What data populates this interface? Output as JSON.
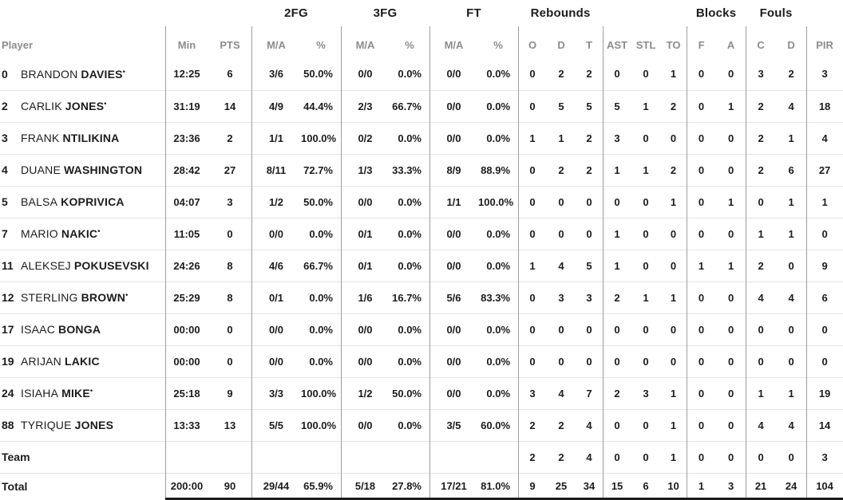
{
  "colors": {
    "text": "#1c1c1c",
    "muted_header": "#8c8c8c",
    "column_divider": "#9e9e9e",
    "row_line": "#e4e4e4",
    "total_bar": "#1c1c1c"
  },
  "header": {
    "player_label": "Player",
    "groups": {
      "fg2": "2FG",
      "fg3": "3FG",
      "ft": "FT",
      "rebounds": "Rebounds",
      "blocks": "Blocks",
      "fouls": "Fouls"
    },
    "cols": {
      "min": "Min",
      "pts": "PTS",
      "ma": "M/A",
      "pct": "%",
      "reb_o": "O",
      "reb_d": "D",
      "reb_t": "T",
      "ast": "AST",
      "stl": "STL",
      "to": "TO",
      "blk_f": "F",
      "blk_a": "A",
      "foul_c": "C",
      "foul_d": "D",
      "pir": "PIR"
    }
  },
  "starter_marker": "•",
  "players": [
    {
      "number": "0",
      "first": "BRANDON",
      "last": "DAVIES",
      "starter": true,
      "min": "12:25",
      "pts": "6",
      "fg2_ma": "3/6",
      "fg2_pct": "50.0%",
      "fg3_ma": "0/0",
      "fg3_pct": "0.0%",
      "ft_ma": "0/0",
      "ft_pct": "0.0%",
      "reb_o": "0",
      "reb_d": "2",
      "reb_t": "2",
      "ast": "0",
      "stl": "0",
      "to": "1",
      "blk_f": "0",
      "blk_a": "0",
      "foul_c": "3",
      "foul_d": "2",
      "pir": "3"
    },
    {
      "number": "2",
      "first": "CARLIK",
      "last": "JONES",
      "starter": true,
      "min": "31:19",
      "pts": "14",
      "fg2_ma": "4/9",
      "fg2_pct": "44.4%",
      "fg3_ma": "2/3",
      "fg3_pct": "66.7%",
      "ft_ma": "0/0",
      "ft_pct": "0.0%",
      "reb_o": "0",
      "reb_d": "5",
      "reb_t": "5",
      "ast": "5",
      "stl": "1",
      "to": "2",
      "blk_f": "0",
      "blk_a": "1",
      "foul_c": "2",
      "foul_d": "4",
      "pir": "18"
    },
    {
      "number": "3",
      "first": "FRANK",
      "last": "NTILIKINA",
      "starter": false,
      "min": "23:36",
      "pts": "2",
      "fg2_ma": "1/1",
      "fg2_pct": "100.0%",
      "fg3_ma": "0/2",
      "fg3_pct": "0.0%",
      "ft_ma": "0/0",
      "ft_pct": "0.0%",
      "reb_o": "1",
      "reb_d": "1",
      "reb_t": "2",
      "ast": "3",
      "stl": "0",
      "to": "0",
      "blk_f": "0",
      "blk_a": "0",
      "foul_c": "2",
      "foul_d": "1",
      "pir": "4"
    },
    {
      "number": "4",
      "first": "DUANE",
      "last": "WASHINGTON",
      "starter": false,
      "min": "28:42",
      "pts": "27",
      "fg2_ma": "8/11",
      "fg2_pct": "72.7%",
      "fg3_ma": "1/3",
      "fg3_pct": "33.3%",
      "ft_ma": "8/9",
      "ft_pct": "88.9%",
      "reb_o": "0",
      "reb_d": "2",
      "reb_t": "2",
      "ast": "1",
      "stl": "1",
      "to": "2",
      "blk_f": "0",
      "blk_a": "0",
      "foul_c": "2",
      "foul_d": "6",
      "pir": "27"
    },
    {
      "number": "5",
      "first": "BALSA",
      "last": "KOPRIVICA",
      "starter": false,
      "min": "04:07",
      "pts": "3",
      "fg2_ma": "1/2",
      "fg2_pct": "50.0%",
      "fg3_ma": "0/0",
      "fg3_pct": "0.0%",
      "ft_ma": "1/1",
      "ft_pct": "100.0%",
      "reb_o": "0",
      "reb_d": "0",
      "reb_t": "0",
      "ast": "0",
      "stl": "0",
      "to": "1",
      "blk_f": "0",
      "blk_a": "1",
      "foul_c": "0",
      "foul_d": "1",
      "pir": "1"
    },
    {
      "number": "7",
      "first": "MARIO",
      "last": "NAKIC",
      "starter": true,
      "min": "11:05",
      "pts": "0",
      "fg2_ma": "0/0",
      "fg2_pct": "0.0%",
      "fg3_ma": "0/1",
      "fg3_pct": "0.0%",
      "ft_ma": "0/0",
      "ft_pct": "0.0%",
      "reb_o": "0",
      "reb_d": "0",
      "reb_t": "0",
      "ast": "1",
      "stl": "0",
      "to": "0",
      "blk_f": "0",
      "blk_a": "0",
      "foul_c": "1",
      "foul_d": "1",
      "pir": "0"
    },
    {
      "number": "11",
      "first": "ALEKSEJ",
      "last": "POKUSEVSKI",
      "starter": false,
      "min": "24:26",
      "pts": "8",
      "fg2_ma": "4/6",
      "fg2_pct": "66.7%",
      "fg3_ma": "0/1",
      "fg3_pct": "0.0%",
      "ft_ma": "0/0",
      "ft_pct": "0.0%",
      "reb_o": "1",
      "reb_d": "4",
      "reb_t": "5",
      "ast": "1",
      "stl": "0",
      "to": "0",
      "blk_f": "1",
      "blk_a": "1",
      "foul_c": "2",
      "foul_d": "0",
      "pir": "9"
    },
    {
      "number": "12",
      "first": "STERLING",
      "last": "BROWN",
      "starter": true,
      "min": "25:29",
      "pts": "8",
      "fg2_ma": "0/1",
      "fg2_pct": "0.0%",
      "fg3_ma": "1/6",
      "fg3_pct": "16.7%",
      "ft_ma": "5/6",
      "ft_pct": "83.3%",
      "reb_o": "0",
      "reb_d": "3",
      "reb_t": "3",
      "ast": "2",
      "stl": "1",
      "to": "1",
      "blk_f": "0",
      "blk_a": "0",
      "foul_c": "4",
      "foul_d": "4",
      "pir": "6"
    },
    {
      "number": "17",
      "first": "ISAAC",
      "last": "BONGA",
      "starter": false,
      "min": "00:00",
      "pts": "0",
      "fg2_ma": "0/0",
      "fg2_pct": "0.0%",
      "fg3_ma": "0/0",
      "fg3_pct": "0.0%",
      "ft_ma": "0/0",
      "ft_pct": "0.0%",
      "reb_o": "0",
      "reb_d": "0",
      "reb_t": "0",
      "ast": "0",
      "stl": "0",
      "to": "0",
      "blk_f": "0",
      "blk_a": "0",
      "foul_c": "0",
      "foul_d": "0",
      "pir": "0"
    },
    {
      "number": "19",
      "first": "ARIJAN",
      "last": "LAKIC",
      "starter": false,
      "min": "00:00",
      "pts": "0",
      "fg2_ma": "0/0",
      "fg2_pct": "0.0%",
      "fg3_ma": "0/0",
      "fg3_pct": "0.0%",
      "ft_ma": "0/0",
      "ft_pct": "0.0%",
      "reb_o": "0",
      "reb_d": "0",
      "reb_t": "0",
      "ast": "0",
      "stl": "0",
      "to": "0",
      "blk_f": "0",
      "blk_a": "0",
      "foul_c": "0",
      "foul_d": "0",
      "pir": "0"
    },
    {
      "number": "24",
      "first": "ISIAHA",
      "last": "MIKE",
      "starter": true,
      "min": "25:18",
      "pts": "9",
      "fg2_ma": "3/3",
      "fg2_pct": "100.0%",
      "fg3_ma": "1/2",
      "fg3_pct": "50.0%",
      "ft_ma": "0/0",
      "ft_pct": "0.0%",
      "reb_o": "3",
      "reb_d": "4",
      "reb_t": "7",
      "ast": "2",
      "stl": "3",
      "to": "1",
      "blk_f": "0",
      "blk_a": "0",
      "foul_c": "1",
      "foul_d": "1",
      "pir": "19"
    },
    {
      "number": "88",
      "first": "TYRIQUE",
      "last": "JONES",
      "starter": false,
      "min": "13:33",
      "pts": "13",
      "fg2_ma": "5/5",
      "fg2_pct": "100.0%",
      "fg3_ma": "0/0",
      "fg3_pct": "0.0%",
      "ft_ma": "3/5",
      "ft_pct": "60.0%",
      "reb_o": "2",
      "reb_d": "2",
      "reb_t": "4",
      "ast": "0",
      "stl": "0",
      "to": "1",
      "blk_f": "0",
      "blk_a": "0",
      "foul_c": "4",
      "foul_d": "4",
      "pir": "14"
    }
  ],
  "team_row": {
    "label": "Team",
    "min": "",
    "pts": "",
    "fg2_ma": "",
    "fg2_pct": "",
    "fg3_ma": "",
    "fg3_pct": "",
    "ft_ma": "",
    "ft_pct": "",
    "reb_o": "2",
    "reb_d": "2",
    "reb_t": "4",
    "ast": "0",
    "stl": "0",
    "to": "1",
    "blk_f": "0",
    "blk_a": "0",
    "foul_c": "0",
    "foul_d": "0",
    "pir": "3"
  },
  "total_row": {
    "label": "Total",
    "min": "200:00",
    "pts": "90",
    "fg2_ma": "29/44",
    "fg2_pct": "65.9%",
    "fg3_ma": "5/18",
    "fg3_pct": "27.8%",
    "ft_ma": "17/21",
    "ft_pct": "81.0%",
    "reb_o": "9",
    "reb_d": "25",
    "reb_t": "34",
    "ast": "15",
    "stl": "6",
    "to": "10",
    "blk_f": "1",
    "blk_a": "3",
    "foul_c": "21",
    "foul_d": "24",
    "pir": "104"
  }
}
